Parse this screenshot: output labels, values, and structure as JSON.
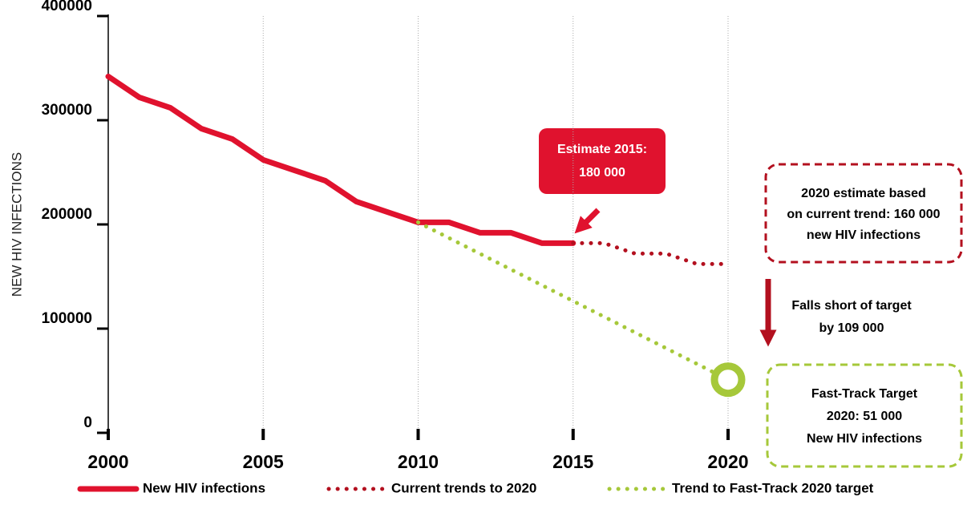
{
  "chart_data": {
    "type": "line",
    "ylabel": "NEW HIV INFECTIONS",
    "xlim": [
      2000,
      2020
    ],
    "xticks": [
      2000,
      2005,
      2010,
      2015,
      2020
    ],
    "ylim": [
      0,
      400000
    ],
    "yticks": [
      0,
      100000,
      200000,
      300000,
      400000
    ],
    "grid": true,
    "series": [
      {
        "name": "New HIV infections",
        "color": "#e0122e",
        "style": "solid",
        "x": [
          2000,
          2001,
          2002,
          2003,
          2004,
          2005,
          2006,
          2007,
          2008,
          2009,
          2010,
          2011,
          2012,
          2013,
          2014,
          2015
        ],
        "values": [
          342000,
          322000,
          312000,
          292000,
          282000,
          262000,
          252000,
          242000,
          222000,
          212000,
          202000,
          202000,
          192000,
          192000,
          182000,
          182000
        ]
      },
      {
        "name": "Current trends to 2020",
        "color": "#b3101f",
        "style": "dotted",
        "x": [
          2015,
          2016,
          2017,
          2018,
          2019,
          2020
        ],
        "values": [
          182000,
          182000,
          172000,
          172000,
          162000,
          162000
        ]
      },
      {
        "name": "Trend to Fast-Track 2020 target",
        "color": "#a6c83a",
        "style": "dotted",
        "x": [
          2010,
          2020
        ],
        "values": [
          202000,
          51000
        ]
      }
    ],
    "annotations": [
      {
        "lines": [
          "Estimate 2015:",
          "180 000"
        ]
      },
      {
        "lines": [
          "2020 estimate based",
          "on current trend: 160 000",
          "new HIV infections"
        ]
      },
      {
        "lines": [
          "Falls short of target",
          "by 109 000"
        ]
      },
      {
        "lines": [
          "Fast-Track Target",
          "2020: 51 000",
          "New HIV infections"
        ]
      }
    ]
  }
}
